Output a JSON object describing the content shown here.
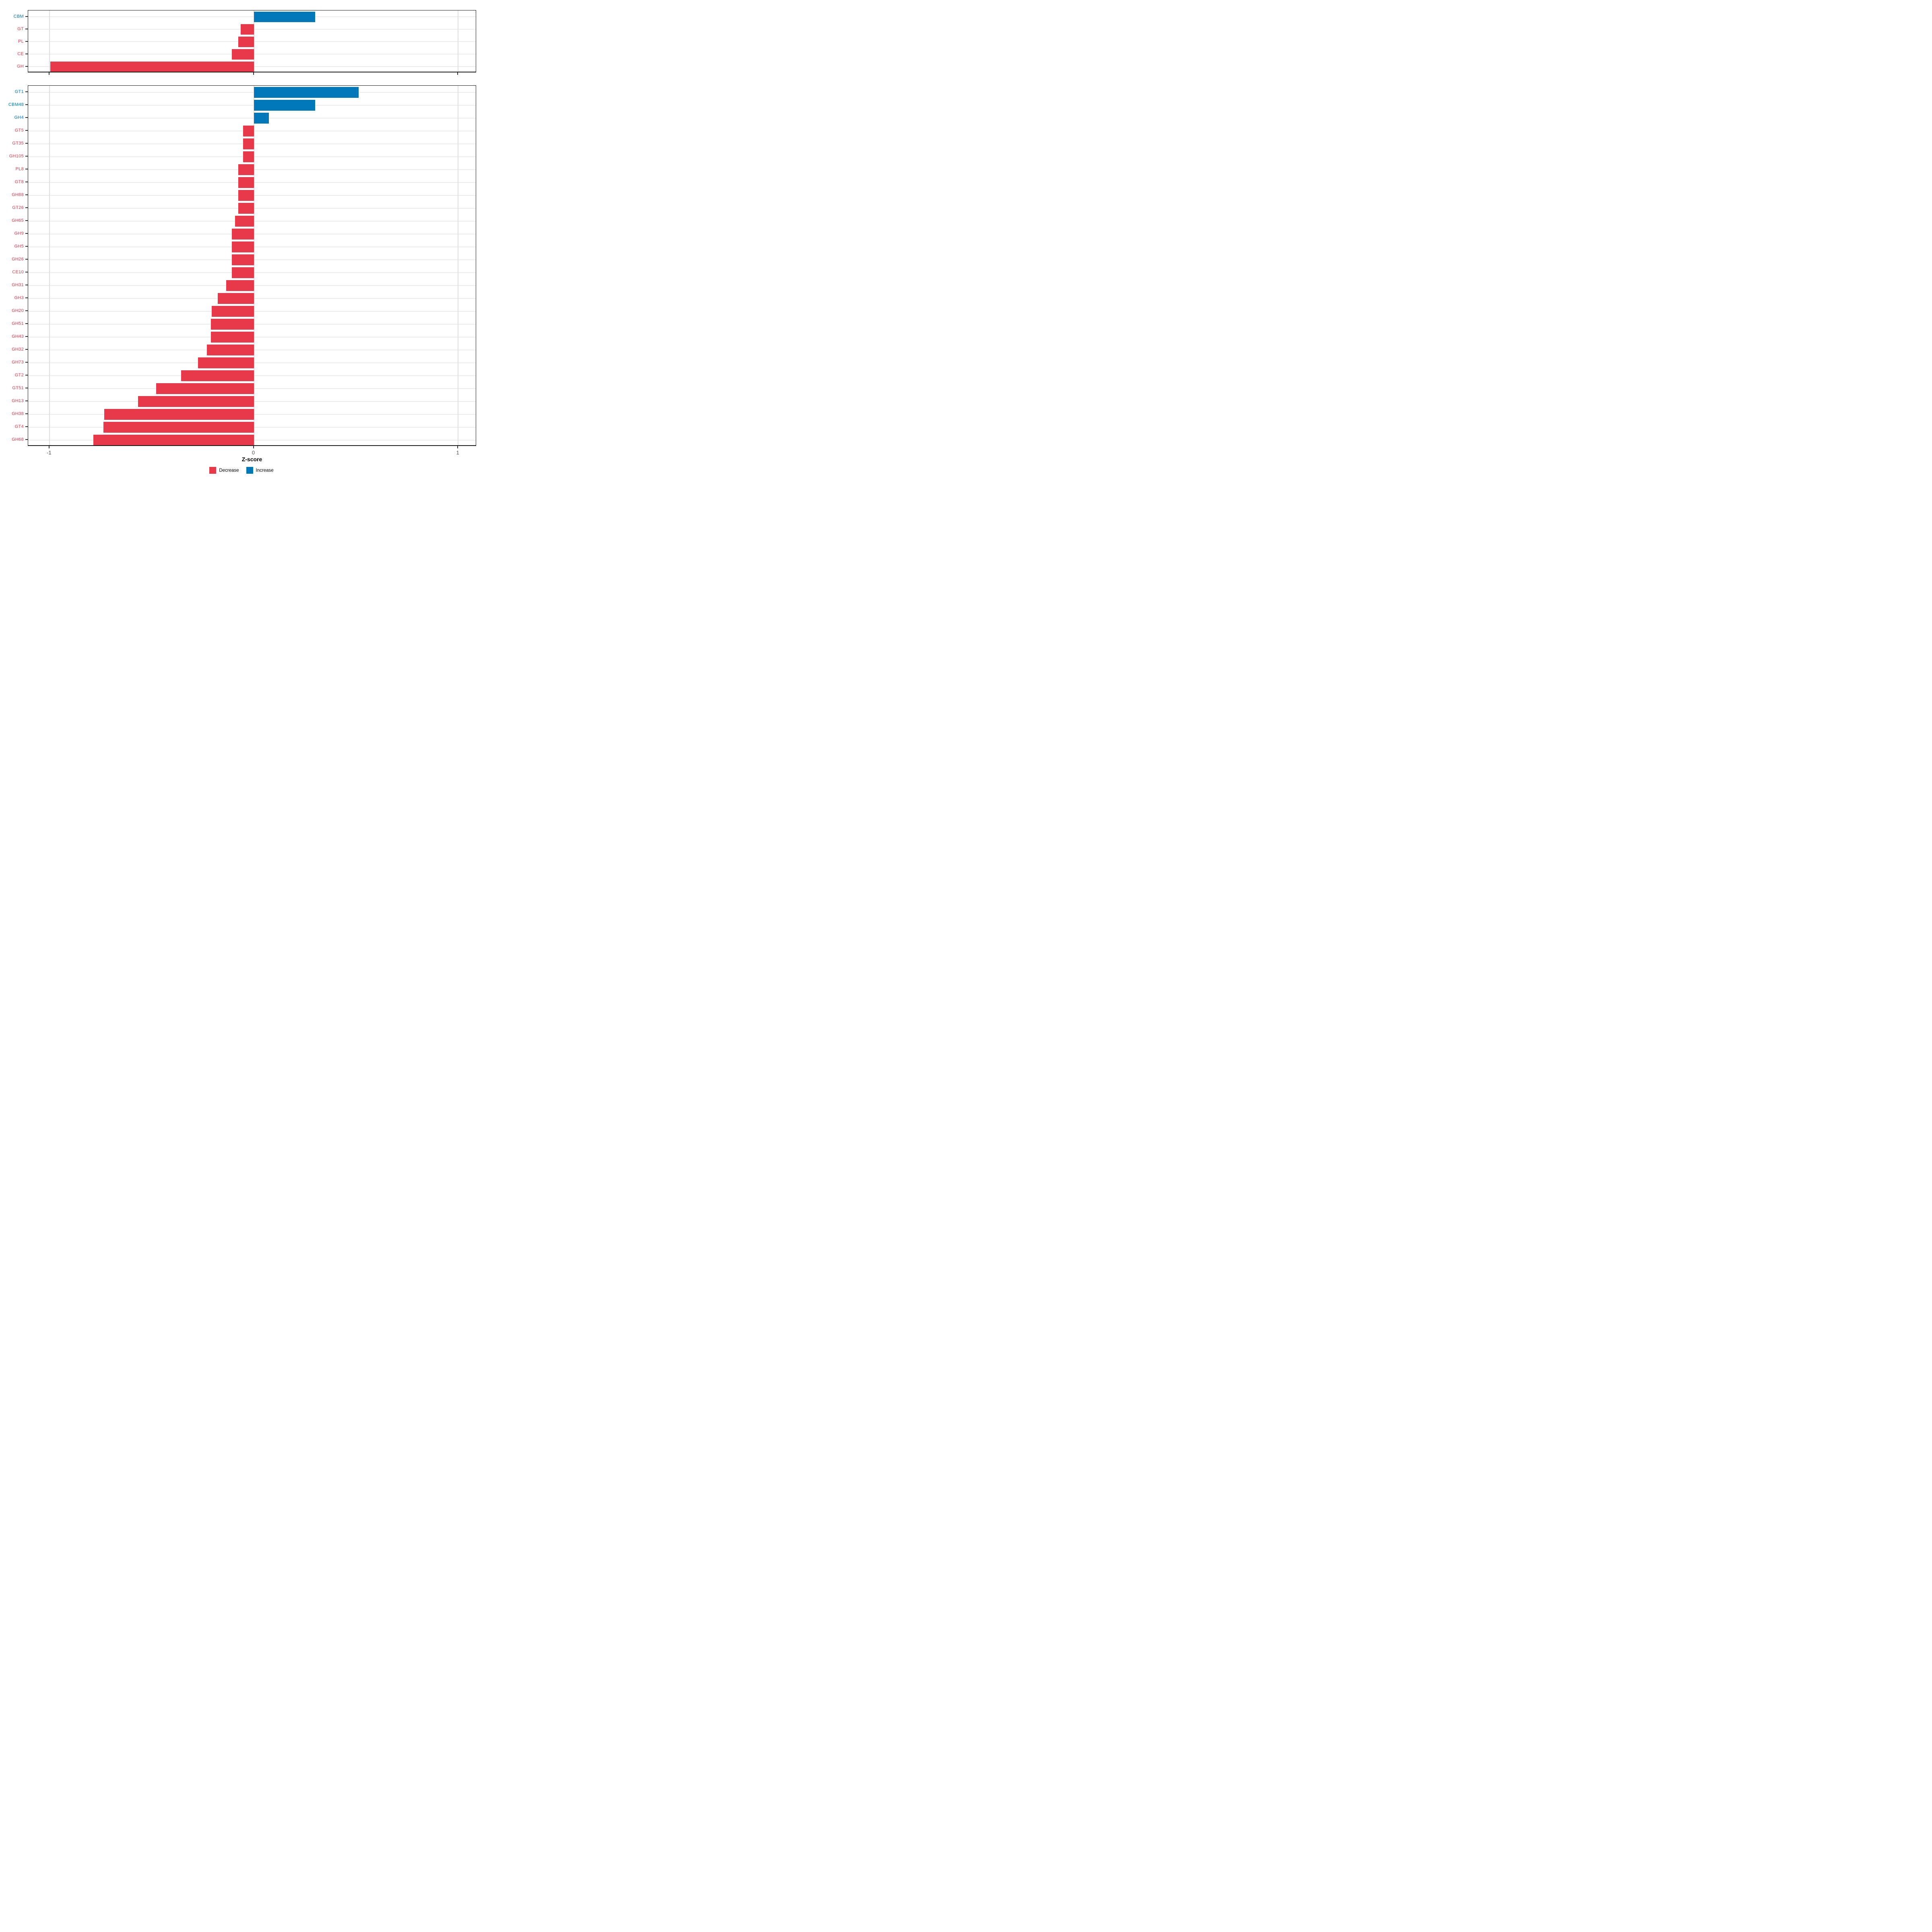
{
  "figure": {
    "xlabel": "Z-score",
    "x_tick_labels": [
      "-1",
      "0",
      "1"
    ],
    "legend": {
      "items": [
        {
          "label": "Decrease",
          "color": "#E8394A"
        },
        {
          "label": "Increase",
          "color": "#0077B6"
        }
      ]
    },
    "colors": {
      "decrease": "#E8394A",
      "increase": "#0077B6",
      "grid": "#DEDEDE",
      "panel_border": "#1A1A1A",
      "tick": "#333333",
      "tick_label": "#4D4D4D",
      "axis_title": "#000000"
    }
  },
  "chart_data": [
    {
      "type": "bar",
      "orientation": "horizontal",
      "panel": "top",
      "title": "",
      "xlabel": "Z-score",
      "ylabel": "",
      "xlim": [
        -1.104,
        1.09
      ],
      "x_ticks": [
        -1,
        0,
        1
      ],
      "grid": true,
      "legend_position": "bottom",
      "categories": [
        "CBM",
        "GT",
        "PL",
        "CE",
        "GH"
      ],
      "values": [
        0.3,
        -0.065,
        -0.076,
        -0.107,
        -0.995
      ],
      "directions": [
        "Increase",
        "Decrease",
        "Decrease",
        "Decrease",
        "Decrease"
      ],
      "color_by": "sign",
      "positive_color": "#0077B6",
      "negative_color": "#E8394A"
    },
    {
      "type": "bar",
      "orientation": "horizontal",
      "panel": "bottom",
      "title": "",
      "xlabel": "Z-score",
      "ylabel": "",
      "xlim": [
        -1.104,
        1.09
      ],
      "x_ticks": [
        -1,
        0,
        1
      ],
      "grid": true,
      "legend_position": "bottom",
      "categories": [
        "GT1",
        "CBM48",
        "GH4",
        "GT5",
        "GT35",
        "GH105",
        "PL8",
        "GT8",
        "GH88",
        "GT26",
        "GH65",
        "GH9",
        "GH5",
        "GH26",
        "CE10",
        "GH31",
        "GH3",
        "GH20",
        "GH51",
        "GH43",
        "GH32",
        "GH73",
        "GT2",
        "GT51",
        "GH13",
        "GH38",
        "GT4",
        "GH68"
      ],
      "values": [
        0.512,
        0.3,
        0.074,
        -0.053,
        -0.053,
        -0.053,
        -0.076,
        -0.076,
        -0.076,
        -0.076,
        -0.092,
        -0.107,
        -0.107,
        -0.107,
        -0.107,
        -0.136,
        -0.177,
        -0.205,
        -0.209,
        -0.209,
        -0.229,
        -0.272,
        -0.355,
        -0.477,
        -0.567,
        -0.731,
        -0.735,
        -0.784
      ],
      "directions": [
        "Increase",
        "Increase",
        "Increase",
        "Decrease",
        "Decrease",
        "Decrease",
        "Decrease",
        "Decrease",
        "Decrease",
        "Decrease",
        "Decrease",
        "Decrease",
        "Decrease",
        "Decrease",
        "Decrease",
        "Decrease",
        "Decrease",
        "Decrease",
        "Decrease",
        "Decrease",
        "Decrease",
        "Decrease",
        "Decrease",
        "Decrease",
        "Decrease",
        "Decrease",
        "Decrease",
        "Decrease"
      ],
      "color_by": "sign",
      "positive_color": "#0077B6",
      "negative_color": "#E8394A"
    }
  ]
}
